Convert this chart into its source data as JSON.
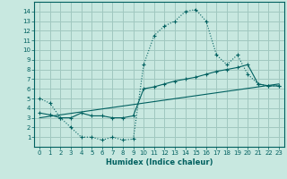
{
  "bg_color": "#c8e8e0",
  "grid_color": "#a0c8c0",
  "line_color": "#006060",
  "line1_x": [
    0,
    1,
    2,
    3,
    4,
    5,
    6,
    7,
    8,
    9,
    10,
    11,
    12,
    13,
    14,
    15,
    16,
    17,
    18,
    19,
    20,
    21,
    22,
    23
  ],
  "line1_y": [
    5.0,
    4.5,
    3.0,
    2.0,
    1.0,
    1.0,
    0.7,
    1.0,
    0.7,
    0.8,
    8.5,
    11.5,
    12.5,
    13.0,
    14.0,
    14.2,
    13.0,
    9.5,
    8.5,
    9.5,
    7.5,
    6.5,
    6.3,
    6.3
  ],
  "line2_x": [
    0,
    1,
    2,
    3,
    4,
    5,
    6,
    7,
    8,
    9,
    10,
    11,
    12,
    13,
    14,
    15,
    16,
    17,
    18,
    19,
    20,
    21,
    22,
    23
  ],
  "line2_y": [
    3.5,
    3.3,
    3.0,
    3.0,
    3.5,
    3.2,
    3.2,
    3.0,
    3.0,
    3.2,
    6.0,
    6.2,
    6.5,
    6.8,
    7.0,
    7.2,
    7.5,
    7.8,
    8.0,
    8.2,
    8.5,
    6.5,
    6.3,
    6.3
  ],
  "line3_x": [
    0,
    23
  ],
  "line3_y": [
    3.0,
    6.5
  ],
  "xlim": [
    -0.5,
    23.5
  ],
  "ylim": [
    0,
    15
  ],
  "yticks": [
    1,
    2,
    3,
    4,
    5,
    6,
    7,
    8,
    9,
    10,
    11,
    12,
    13,
    14
  ],
  "xticks": [
    0,
    1,
    2,
    3,
    4,
    5,
    6,
    7,
    8,
    9,
    10,
    11,
    12,
    13,
    14,
    15,
    16,
    17,
    18,
    19,
    20,
    21,
    22,
    23
  ],
  "xlabel": "Humidex (Indice chaleur)",
  "xlabel_fontsize": 6,
  "tick_fontsize": 5
}
